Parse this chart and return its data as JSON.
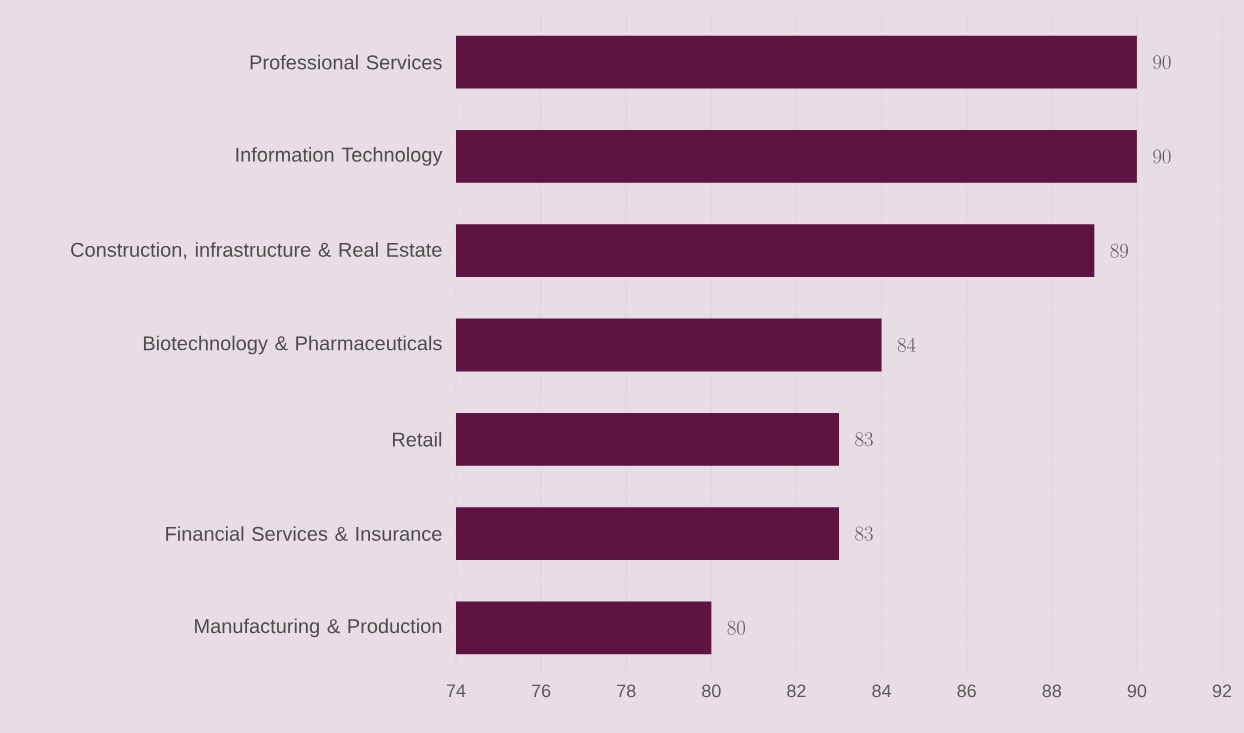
{
  "chart_data": {
    "type": "bar",
    "orientation": "horizontal",
    "categories": [
      "Professional Services",
      "Information Technology",
      "Construction, infrastructure & Real Estate",
      "Biotechnology & Pharmaceuticals",
      "Retail",
      "Financial Services & Insurance",
      "Manufacturing & Production"
    ],
    "values": [
      90,
      90,
      89,
      84,
      83,
      83,
      80
    ],
    "color": "#5e1440",
    "xlim": [
      74,
      92
    ],
    "xticks": [
      74,
      76,
      78,
      80,
      82,
      84,
      86,
      88,
      90,
      92
    ],
    "grid": "x",
    "data_labels": true
  }
}
